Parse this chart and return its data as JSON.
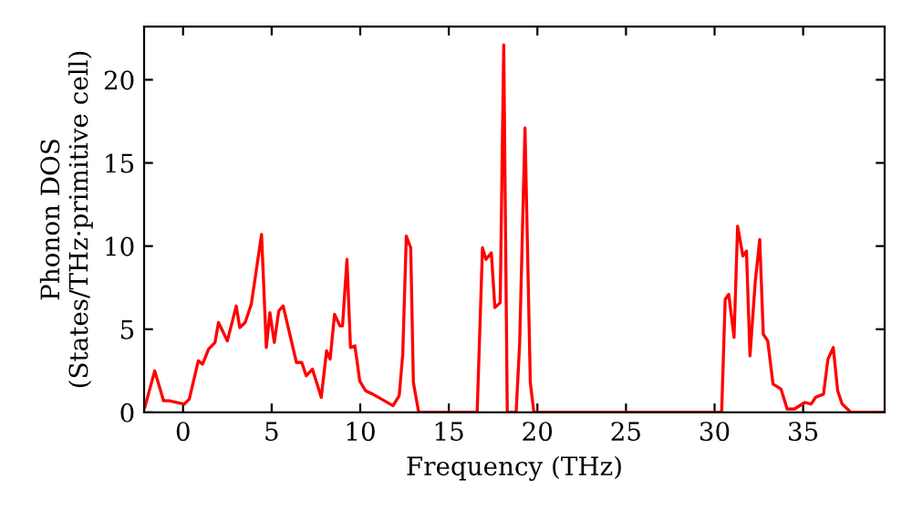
{
  "chart_data": {
    "type": "line",
    "xlabel": "Frequency (THz)",
    "ylabel": "Phonon DOS\n(States/THz·primitive cell)",
    "xlim": [
      -2.2,
      39.6
    ],
    "ylim": [
      0,
      23.2
    ],
    "xticks": [
      0,
      5,
      10,
      15,
      20,
      25,
      30,
      35
    ],
    "yticks": [
      0,
      5,
      10,
      15,
      20
    ],
    "grid": false,
    "marker": "none",
    "line_style": "solid",
    "series": [
      {
        "color": "#ff0000",
        "x": [
          -2.16,
          -1.6,
          -1.1,
          -0.8,
          0.07,
          0.35,
          0.86,
          1.1,
          1.44,
          1.8,
          2.0,
          2.5,
          3.0,
          3.2,
          3.5,
          3.85,
          4.43,
          4.7,
          4.9,
          5.15,
          5.4,
          5.65,
          6.4,
          6.7,
          6.95,
          7.3,
          7.8,
          8.1,
          8.3,
          8.55,
          8.85,
          9.0,
          9.25,
          9.45,
          9.7,
          9.97,
          10.3,
          10.7,
          11.2,
          11.85,
          12.2,
          12.4,
          12.6,
          12.85,
          13.0,
          13.3,
          16.6,
          16.9,
          17.1,
          17.4,
          17.6,
          17.9,
          18.1,
          18.3,
          18.8,
          19.0,
          19.3,
          19.6,
          19.8,
          30.4,
          30.6,
          30.8,
          31.1,
          31.3,
          31.6,
          31.8,
          32.0,
          32.3,
          32.55,
          32.75,
          33.0,
          33.3,
          33.75,
          34.1,
          34.5,
          35.1,
          35.45,
          35.7,
          36.15,
          36.4,
          36.7,
          36.95,
          37.2,
          37.7,
          39.6
        ],
        "values": [
          0.3,
          2.5,
          0.7,
          0.7,
          0.5,
          0.8,
          3.1,
          2.9,
          3.8,
          4.2,
          5.4,
          4.3,
          6.4,
          5.1,
          5.4,
          6.5,
          10.7,
          3.9,
          6.0,
          4.2,
          6.1,
          6.4,
          3.0,
          3.0,
          2.2,
          2.6,
          0.9,
          3.7,
          3.2,
          5.9,
          5.2,
          5.2,
          9.2,
          3.9,
          4.0,
          1.9,
          1.3,
          1.1,
          0.8,
          0.4,
          1.0,
          3.5,
          10.6,
          9.9,
          1.8,
          0,
          0,
          9.9,
          9.2,
          9.6,
          6.3,
          6.6,
          22.1,
          0,
          0,
          4.2,
          17.1,
          1.8,
          0,
          0,
          6.8,
          7.1,
          4.5,
          11.2,
          9.4,
          9.7,
          3.4,
          7.9,
          10.4,
          4.7,
          4.3,
          1.7,
          1.4,
          0.2,
          0.2,
          0.6,
          0.5,
          0.9,
          1.1,
          3.2,
          3.9,
          1.3,
          0.5,
          0,
          0
        ]
      }
    ]
  }
}
